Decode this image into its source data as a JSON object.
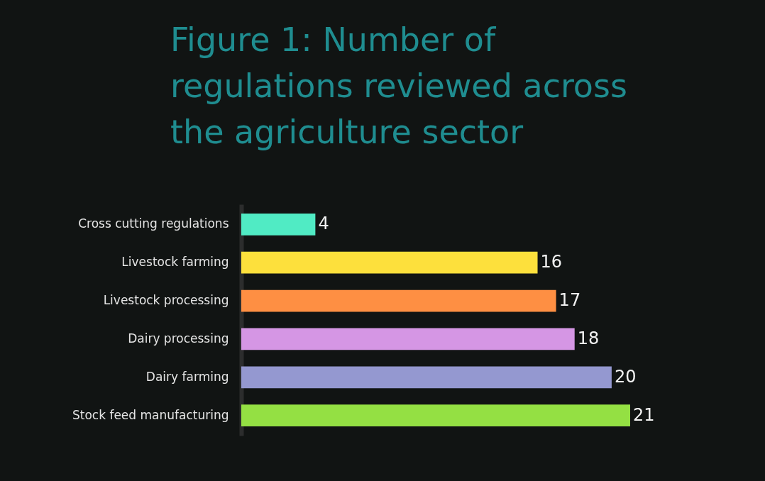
{
  "chart_data": {
    "type": "bar",
    "orientation": "horizontal",
    "title": "Figure 1: Number of regulations reviewed across the agriculture sector",
    "categories": [
      "Cross cutting regulations",
      "Livestock farming",
      "Livestock processing",
      "Dairy processing",
      "Dairy farming",
      "Stock feed manufacturing"
    ],
    "values": [
      4,
      16,
      17,
      18,
      20,
      21
    ],
    "colors": [
      "#50ebc4",
      "#fde03c",
      "#fe8f43",
      "#d596e4",
      "#9498d0",
      "#94e043"
    ],
    "data_labels": true,
    "tick_labels": "y"
  }
}
